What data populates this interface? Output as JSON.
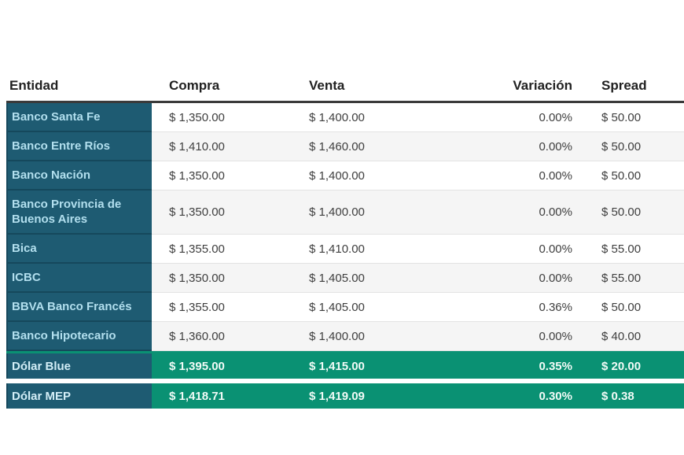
{
  "chart_data": {
    "type": "table",
    "columns": [
      "Entidad",
      "Compra",
      "Venta",
      "Variación",
      "Spread"
    ],
    "rows": [
      [
        "Banco Santa Fe",
        "$ 1,350.00",
        "$ 1,400.00",
        "0.00%",
        "$ 50.00"
      ],
      [
        "Banco Entre Ríos",
        "$ 1,410.00",
        "$ 1,460.00",
        "0.00%",
        "$ 50.00"
      ],
      [
        "Banco Nación",
        "$ 1,350.00",
        "$ 1,400.00",
        "0.00%",
        "$ 50.00"
      ],
      [
        "Banco Provincia de Buenos Aires",
        "$ 1,350.00",
        "$ 1,400.00",
        "0.00%",
        "$ 50.00"
      ],
      [
        "Bica",
        "$ 1,355.00",
        "$ 1,410.00",
        "0.00%",
        "$ 55.00"
      ],
      [
        "ICBC",
        "$ 1,350.00",
        "$ 1,405.00",
        "0.00%",
        "$ 55.00"
      ],
      [
        "BBVA Banco Francés",
        "$ 1,355.00",
        "$ 1,405.00",
        "0.36%",
        "$ 50.00"
      ],
      [
        "Banco Hipotecario",
        "$ 1,360.00",
        "$ 1,400.00",
        "0.00%",
        "$ 40.00"
      ]
    ],
    "highlight_rows": [
      [
        "Dólar Blue",
        "$ 1,395.00",
        "$ 1,415.00",
        "0.35%",
        "$ 20.00"
      ],
      [
        "Dólar MEP",
        "$ 1,418.71",
        "$ 1,419.09",
        "0.30%",
        "$ 0.38"
      ]
    ]
  },
  "colors": {
    "entity_bg": "#1e5b72",
    "entity_text": "#b2dfee",
    "highlight_bg": "#0a9173",
    "highlight_text": "#f1fbf7",
    "row_alt_bg": "#f5f5f5",
    "header_border": "#3a3a3a",
    "value_text": "#3e3e3e"
  }
}
